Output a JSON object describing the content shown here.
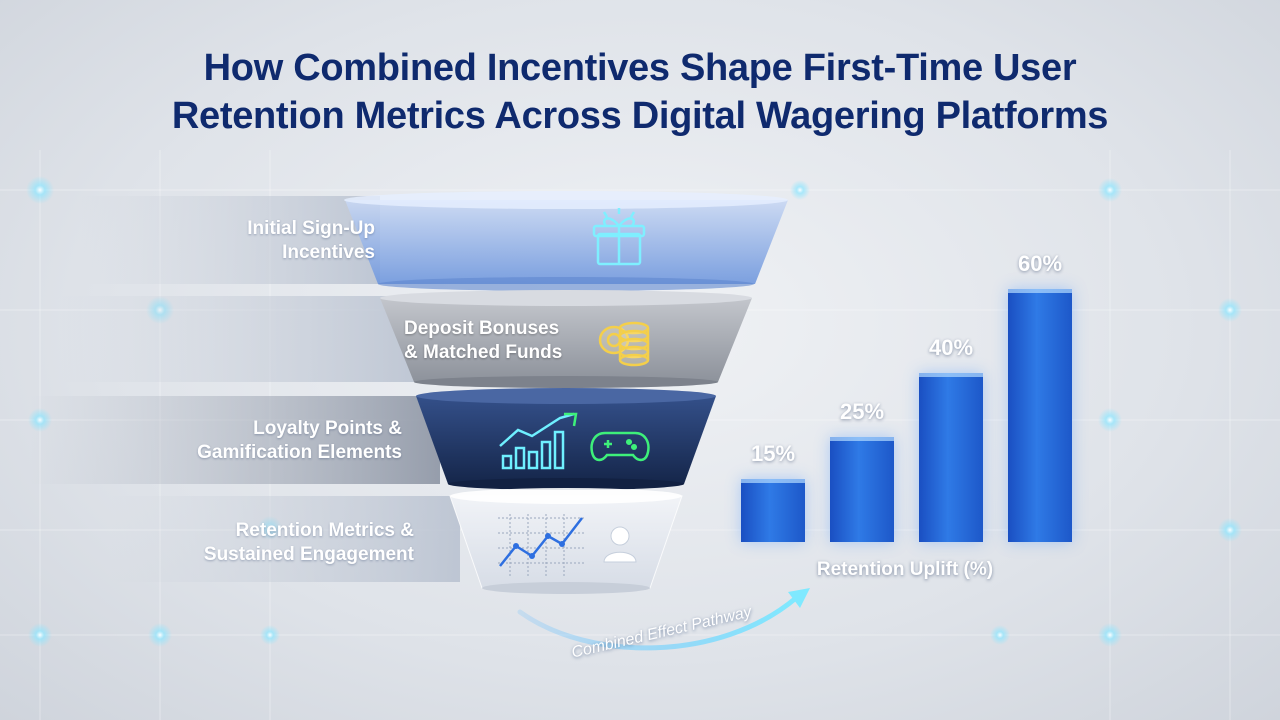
{
  "title": {
    "line1": "How Combined Incentives Shape First-Time User",
    "line2": "Retention Metrics Across Digital Wagering Platforms"
  },
  "funnel": {
    "stages": [
      {
        "label_line1": "Initial Sign-Up",
        "label_line2": "Incentives",
        "icon": "gift-icon"
      },
      {
        "label_line1": "Deposit Bonuses",
        "label_line2": "& Matched Funds",
        "icon": "coins-icon"
      },
      {
        "label_line1": "Loyalty Points &",
        "label_line2": "Gamification Elements",
        "icon": "growth-chart-icon",
        "icon2": "gamepad-icon"
      },
      {
        "label_line1": "Retention Metrics &",
        "label_line2": "Sustained Engagement",
        "icon": "line-chart-icon",
        "icon2": "user-icon"
      }
    ],
    "colors": {
      "stage1": "#8fb0e6",
      "stage2": "#9ea3ad",
      "stage3": "#1c3360",
      "stage4": "#e4e8ef",
      "accent": "#4fd8ff"
    }
  },
  "chart_data": {
    "type": "bar",
    "categories": [
      "",
      "",
      "",
      ""
    ],
    "values": [
      15,
      25,
      40,
      60
    ],
    "value_labels": [
      "15%",
      "25%",
      "40%",
      "60%"
    ],
    "xlabel": "Retention Uplift (%)",
    "ylabel": "",
    "ylim": [
      0,
      65
    ],
    "grid": false
  },
  "pathway": {
    "label": "Combined Effect Pathway"
  }
}
